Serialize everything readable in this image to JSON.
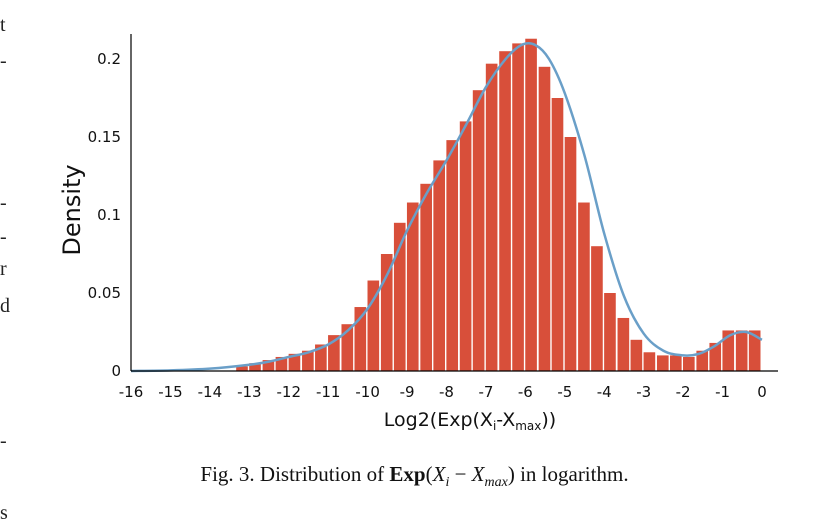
{
  "margin_text": [
    "t",
    "-",
    "-",
    "-",
    "r",
    "d",
    "-",
    "s"
  ],
  "caption": {
    "prefix": "Fig. 3.  Distribution of ",
    "func": "Exp",
    "open": "(",
    "xi": "X",
    "xi_sub": "i",
    "minus": " − ",
    "xmax": "X",
    "xmax_sub": "max",
    "close": ")",
    "suffix": " in logarithm."
  },
  "chart_data": {
    "type": "bar",
    "ylabel": "Density",
    "xlabel": "Log2(Exp(X",
    "xlabel_sub1": "i",
    "xlabel_mid": "-X",
    "xlabel_sub2": "max",
    "xlabel_end": "))",
    "xlim": [
      -16,
      0
    ],
    "ylim": [
      0,
      0.22
    ],
    "xticks": [
      "-16",
      "-15",
      "-14",
      "-13",
      "-12",
      "-11",
      "-10",
      "-9",
      "-8",
      "-7",
      "-6",
      "-5",
      "-4",
      "-3",
      "-2",
      "-1",
      "0"
    ],
    "yticks": [
      "0",
      "0.05",
      "0.1",
      "0.15",
      "0.2"
    ],
    "bar_color": "#d84f3a",
    "curve_color": "#6a9fc8",
    "bin_width": 0.333,
    "bins": [
      {
        "x": -13.0,
        "y": 0.003
      },
      {
        "x": -12.67,
        "y": 0.005
      },
      {
        "x": -12.33,
        "y": 0.007
      },
      {
        "x": -12.0,
        "y": 0.009
      },
      {
        "x": -11.67,
        "y": 0.011
      },
      {
        "x": -11.33,
        "y": 0.013
      },
      {
        "x": -11.0,
        "y": 0.017
      },
      {
        "x": -10.67,
        "y": 0.023
      },
      {
        "x": -10.33,
        "y": 0.03
      },
      {
        "x": -10.0,
        "y": 0.041
      },
      {
        "x": -9.67,
        "y": 0.058
      },
      {
        "x": -9.33,
        "y": 0.075
      },
      {
        "x": -9.0,
        "y": 0.095
      },
      {
        "x": -8.67,
        "y": 0.108
      },
      {
        "x": -8.33,
        "y": 0.12
      },
      {
        "x": -8.0,
        "y": 0.135
      },
      {
        "x": -7.67,
        "y": 0.148
      },
      {
        "x": -7.33,
        "y": 0.16
      },
      {
        "x": -7.0,
        "y": 0.18
      },
      {
        "x": -6.67,
        "y": 0.197
      },
      {
        "x": -6.33,
        "y": 0.205
      },
      {
        "x": -6.0,
        "y": 0.21
      },
      {
        "x": -5.67,
        "y": 0.213
      },
      {
        "x": -5.33,
        "y": 0.195
      },
      {
        "x": -5.0,
        "y": 0.175
      },
      {
        "x": -4.67,
        "y": 0.15
      },
      {
        "x": -4.33,
        "y": 0.108
      },
      {
        "x": -4.0,
        "y": 0.08
      },
      {
        "x": -3.67,
        "y": 0.05
      },
      {
        "x": -3.33,
        "y": 0.034
      },
      {
        "x": -3.0,
        "y": 0.02
      },
      {
        "x": -2.67,
        "y": 0.012
      },
      {
        "x": -2.33,
        "y": 0.01
      },
      {
        "x": -2.0,
        "y": 0.01
      },
      {
        "x": -1.67,
        "y": 0.009
      },
      {
        "x": -1.33,
        "y": 0.013
      },
      {
        "x": -1.0,
        "y": 0.018
      },
      {
        "x": -0.67,
        "y": 0.026
      },
      {
        "x": -0.33,
        "y": 0.026
      },
      {
        "x": 0.0,
        "y": 0.026
      }
    ],
    "curve": [
      {
        "x": -16,
        "y": 0.0
      },
      {
        "x": -15,
        "y": 0.0004
      },
      {
        "x": -14,
        "y": 0.0015
      },
      {
        "x": -13,
        "y": 0.004
      },
      {
        "x": -12.5,
        "y": 0.006
      },
      {
        "x": -12,
        "y": 0.009
      },
      {
        "x": -11.5,
        "y": 0.012
      },
      {
        "x": -11,
        "y": 0.017
      },
      {
        "x": -10.5,
        "y": 0.026
      },
      {
        "x": -10,
        "y": 0.04
      },
      {
        "x": -9.5,
        "y": 0.062
      },
      {
        "x": -9,
        "y": 0.09
      },
      {
        "x": -8.5,
        "y": 0.114
      },
      {
        "x": -8,
        "y": 0.135
      },
      {
        "x": -7.5,
        "y": 0.158
      },
      {
        "x": -7,
        "y": 0.182
      },
      {
        "x": -6.5,
        "y": 0.2
      },
      {
        "x": -6.1,
        "y": 0.209
      },
      {
        "x": -5.75,
        "y": 0.209
      },
      {
        "x": -5.4,
        "y": 0.2
      },
      {
        "x": -5,
        "y": 0.178
      },
      {
        "x": -4.5,
        "y": 0.138
      },
      {
        "x": -4,
        "y": 0.088
      },
      {
        "x": -3.5,
        "y": 0.048
      },
      {
        "x": -3,
        "y": 0.024
      },
      {
        "x": -2.5,
        "y": 0.013
      },
      {
        "x": -2,
        "y": 0.01
      },
      {
        "x": -1.6,
        "y": 0.011
      },
      {
        "x": -1.2,
        "y": 0.016
      },
      {
        "x": -0.8,
        "y": 0.023
      },
      {
        "x": -0.4,
        "y": 0.025
      },
      {
        "x": 0.0,
        "y": 0.02
      }
    ]
  }
}
